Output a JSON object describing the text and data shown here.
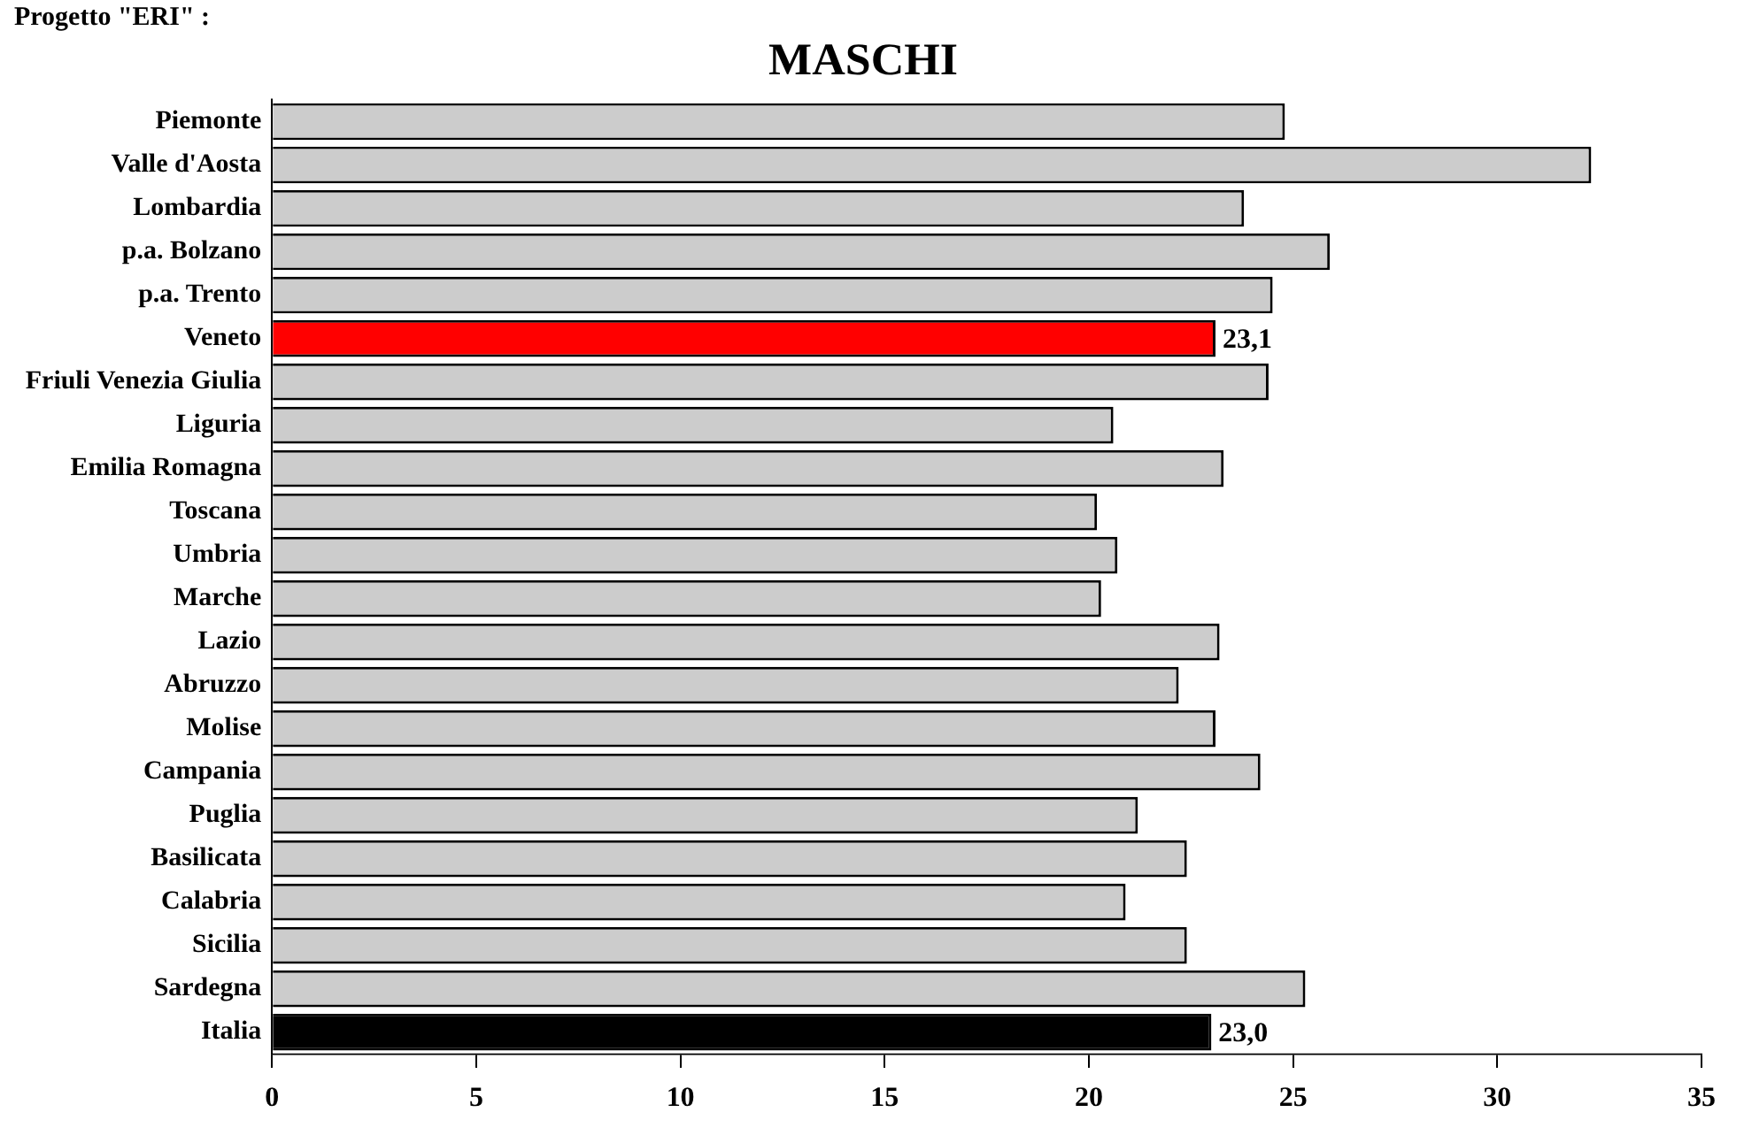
{
  "chart_data": {
    "type": "bar",
    "orientation": "horizontal",
    "title": "MASCHI",
    "annotations": [
      "Progetto \"ERI\" :"
    ],
    "categories": [
      "Piemonte",
      "Valle d'Aosta",
      "Lombardia",
      "p.a. Bolzano",
      "p.a. Trento",
      "Veneto",
      "Friuli Venezia Giulia",
      "Liguria",
      "Emilia Romagna",
      "Toscana",
      "Umbria",
      "Marche",
      "Lazio",
      "Abruzzo",
      "Molise",
      "Campania",
      "Puglia",
      "Basilicata",
      "Calabria",
      "Sicilia",
      "Sardegna",
      "Italia"
    ],
    "values": [
      24.8,
      32.3,
      23.8,
      25.9,
      24.5,
      23.1,
      24.4,
      20.6,
      23.3,
      20.2,
      20.7,
      20.3,
      23.2,
      22.2,
      23.1,
      24.2,
      21.2,
      22.4,
      20.9,
      22.4,
      25.3,
      23.0
    ],
    "colors": [
      "#cccccc",
      "#cccccc",
      "#cccccc",
      "#cccccc",
      "#cccccc",
      "#ff0000",
      "#cccccc",
      "#cccccc",
      "#cccccc",
      "#cccccc",
      "#cccccc",
      "#cccccc",
      "#cccccc",
      "#cccccc",
      "#cccccc",
      "#cccccc",
      "#cccccc",
      "#cccccc",
      "#cccccc",
      "#cccccc",
      "#cccccc",
      "#000000"
    ],
    "value_labels": [
      null,
      null,
      null,
      null,
      null,
      "23,1",
      null,
      null,
      null,
      null,
      null,
      null,
      null,
      null,
      null,
      null,
      null,
      null,
      null,
      null,
      null,
      "23,0"
    ],
    "xlim": [
      0,
      35
    ],
    "xticks": [
      0,
      5,
      10,
      15,
      20,
      25,
      30,
      35
    ],
    "grid": false,
    "legend": false
  }
}
